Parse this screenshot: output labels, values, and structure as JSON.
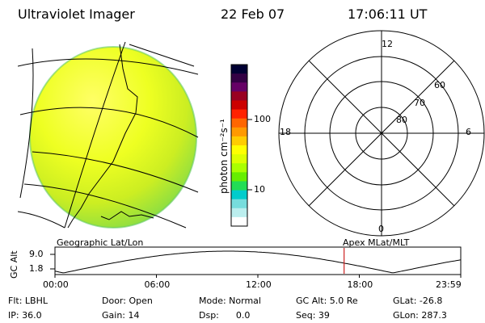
{
  "header": {
    "title": "Ultraviolet Imager",
    "date": "22 Feb 07",
    "time": "17:06:11 UT"
  },
  "colorbar": {
    "unit_label": "photon cm⁻²s⁻¹",
    "ticks": [
      "100",
      "10"
    ],
    "colors": [
      "#000033",
      "#330044",
      "#660066",
      "#990022",
      "#cc0000",
      "#ff2200",
      "#ff6600",
      "#ff9900",
      "#ffcc00",
      "#ffff00",
      "#ddff00",
      "#aaff00",
      "#66ee00",
      "#22dd55",
      "#00cccc",
      "#77dddd",
      "#bbeeee",
      "#ffffff"
    ]
  },
  "polar_plot": {
    "mlt_labels": [
      "12",
      "18",
      "6",
      "0"
    ],
    "lat_labels": [
      "60",
      "70",
      "80"
    ]
  },
  "left_panel": {
    "label": "Geographic Lat/Lon"
  },
  "right_panel": {
    "label": "Apex MLat/MLT"
  },
  "alt_chart": {
    "ylabel": "GC Alt",
    "yticks": [
      "9.0",
      "1.8"
    ],
    "xticks": [
      "00:00",
      "06:00",
      "12:00",
      "18:00",
      "23:59"
    ],
    "marker_time_hours": 17.1
  },
  "info": {
    "filter": "Flt: LBHL",
    "ip": "IP: 36.0",
    "door": "Door: Open",
    "gain": "Gain: 14",
    "mode": "Mode: Normal",
    "dsp": "Dsp:      0.0",
    "gc_alt": "GC Alt: 5.0 Re",
    "seq": "Seq: 39",
    "glat": "GLat: -26.8",
    "glon": "GLon: 287.3"
  }
}
